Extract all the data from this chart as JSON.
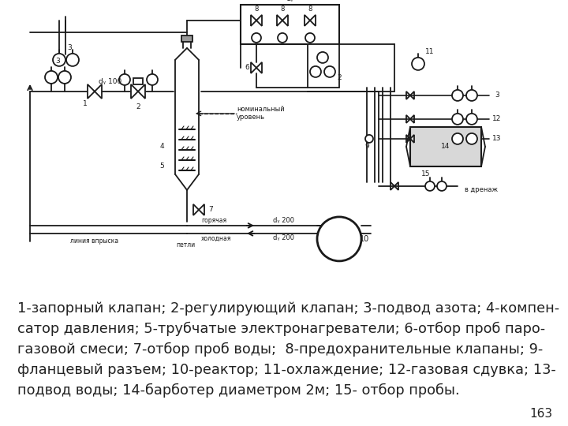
{
  "caption_lines": [
    "1-запорный клапан; 2-регулирующий клапан; 3-подвод азота; 4-компен-",
    "сатор давления; 5-трубчатые электронагреватели; 6-отбор проб паро-",
    "газовой смеси; 7-отбор проб воды;  8-предохранительные клапаны; 9-",
    "фланцевый разъем; 10-реактор; 11-охлаждение; 12-газовая сдувка; 13-",
    "подвод воды; 14-барботер диаметром 2м; 15- отбор пробы."
  ],
  "page_number": "163",
  "bg_color": "#ffffff",
  "text_color": "#222222",
  "caption_fontsize": 12.8,
  "page_fontsize": 11
}
